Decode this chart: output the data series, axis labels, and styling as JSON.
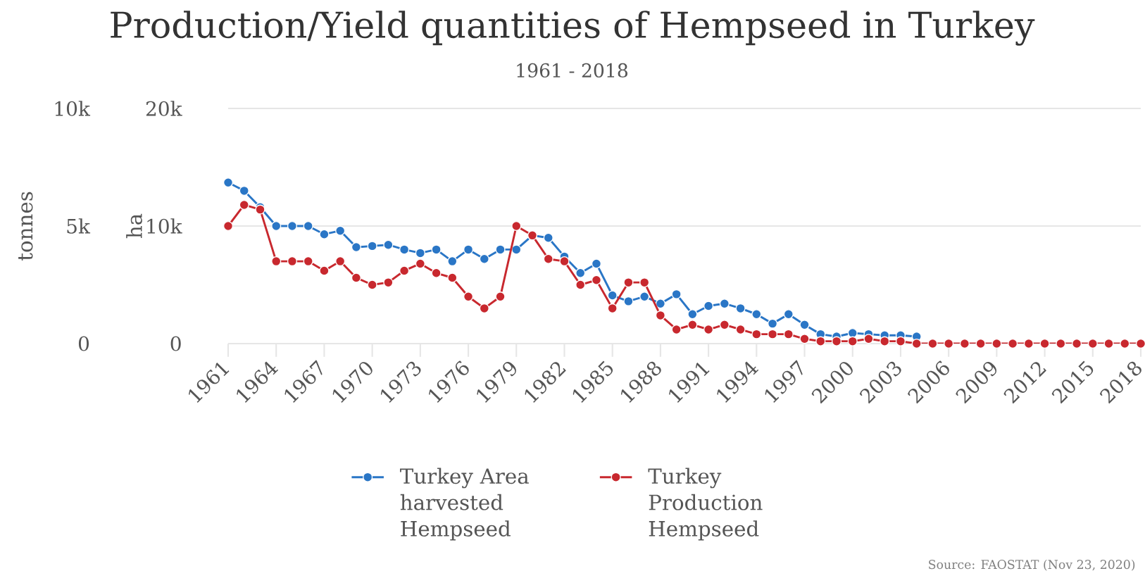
{
  "chart_data": {
    "type": "line",
    "title": "Production/Yield quantities of Hempseed in Turkey",
    "subtitle": "1961 - 2018",
    "ylabel": "ha",
    "y2label": "tonnes",
    "x": [
      1961,
      1962,
      1963,
      1964,
      1965,
      1966,
      1967,
      1968,
      1969,
      1970,
      1971,
      1972,
      1973,
      1974,
      1975,
      1976,
      1977,
      1978,
      1979,
      1980,
      1981,
      1982,
      1983,
      1984,
      1985,
      1986,
      1987,
      1988,
      1989,
      1990,
      1991,
      1992,
      1993,
      1994,
      1995,
      1996,
      1997,
      1998,
      1999,
      2000,
      2001,
      2002,
      2003,
      2004,
      2005,
      2006,
      2007,
      2008,
      2009,
      2010,
      2011,
      2012,
      2013,
      2014,
      2015,
      2016,
      2017,
      2018
    ],
    "xlim": [
      1961,
      2018
    ],
    "xticks": [
      1961,
      1964,
      1967,
      1970,
      1973,
      1976,
      1979,
      1982,
      1985,
      1988,
      1991,
      1994,
      1997,
      2000,
      2003,
      2006,
      2009,
      2012,
      2015,
      2018
    ],
    "ylim": [
      0,
      20000
    ],
    "yticks": [
      {
        "value": 0,
        "label": "0"
      },
      {
        "value": 10000,
        "label": "10k"
      },
      {
        "value": 20000,
        "label": "20k"
      }
    ],
    "y2lim": [
      0,
      10000
    ],
    "y2ticks": [
      {
        "value": 0,
        "label": "0"
      },
      {
        "value": 5000,
        "label": "5k"
      },
      {
        "value": 10000,
        "label": "10k"
      }
    ],
    "series": [
      {
        "name": "Turkey Area harvested Hempseed",
        "color": "#2a76c6",
        "values": [
          13700,
          13000,
          11600,
          10000,
          10000,
          10000,
          9300,
          9600,
          8200,
          8300,
          8400,
          8000,
          7700,
          8000,
          7000,
          8000,
          7200,
          8000,
          8000,
          9200,
          9000,
          7400,
          6000,
          6800,
          4100,
          3600,
          4000,
          3400,
          4200,
          2500,
          3200,
          3400,
          3000,
          2500,
          1700,
          2500,
          1600,
          800,
          600,
          900,
          800,
          700,
          700,
          600,
          null,
          null,
          null,
          null,
          null,
          null,
          null,
          null,
          null,
          null,
          null,
          null,
          null,
          null
        ]
      },
      {
        "name": "Turkey Production Hempseed",
        "color": "#c8282e",
        "axis": "y2",
        "values": [
          5000,
          5900,
          5700,
          3500,
          3500,
          3500,
          3100,
          3500,
          2800,
          2500,
          2600,
          3100,
          3400,
          3000,
          2800,
          2000,
          1500,
          2000,
          5000,
          4600,
          3600,
          3500,
          2500,
          2700,
          1500,
          2600,
          2600,
          1200,
          600,
          800,
          600,
          800,
          600,
          400,
          400,
          400,
          200,
          100,
          100,
          100,
          200,
          100,
          100,
          0,
          0,
          0,
          0,
          0,
          0,
          0,
          0,
          0,
          0,
          0,
          0,
          0,
          0,
          0
        ]
      }
    ],
    "grid": "y",
    "legend": "bottom",
    "marker": "circle",
    "annotations": [
      "Source: FAOSTAT (Nov 23, 2020)"
    ]
  }
}
